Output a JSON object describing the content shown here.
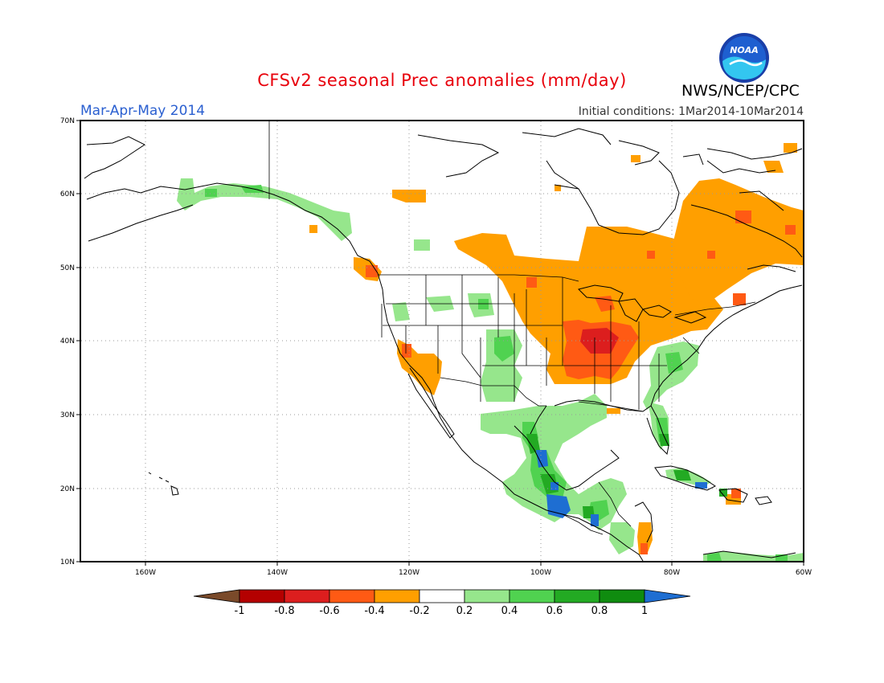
{
  "header": {
    "title": "CFSv2 seasonal Prec anomalies (mm/day)",
    "season": "Mar-Apr-May 2014",
    "initial_conditions": "Initial conditions: 1Mar2014-10Mar2014",
    "agency": "NWS/NCEP/CPC",
    "logo_text": "NOAA"
  },
  "axes": {
    "lat_labels": [
      "70N",
      "60N",
      "50N",
      "40N",
      "30N",
      "20N",
      "10N"
    ],
    "lon_labels": [
      "160W",
      "140W",
      "120W",
      "100W",
      "80W",
      "60W"
    ]
  },
  "colorbar": {
    "labels": [
      "-1",
      "-0.8",
      "-0.6",
      "-0.4",
      "-0.2",
      "0.2",
      "0.4",
      "0.6",
      "0.8",
      "1"
    ],
    "colors": [
      "#7a4a2a",
      "#b40000",
      "#dc1e1e",
      "#ff5a14",
      "#ff9f00",
      "#ffffff",
      "#96e68c",
      "#50d250",
      "#23aa23",
      "#0f8c0f",
      "#1e6ed2"
    ]
  },
  "palette": {
    "orange": "#ff9f00",
    "red": "#ff5a14",
    "dark_red": "#dc1e1e",
    "light_green": "#96e68c",
    "green": "#50d250",
    "dark_green": "#23aa23",
    "blue": "#1e6ed2"
  }
}
